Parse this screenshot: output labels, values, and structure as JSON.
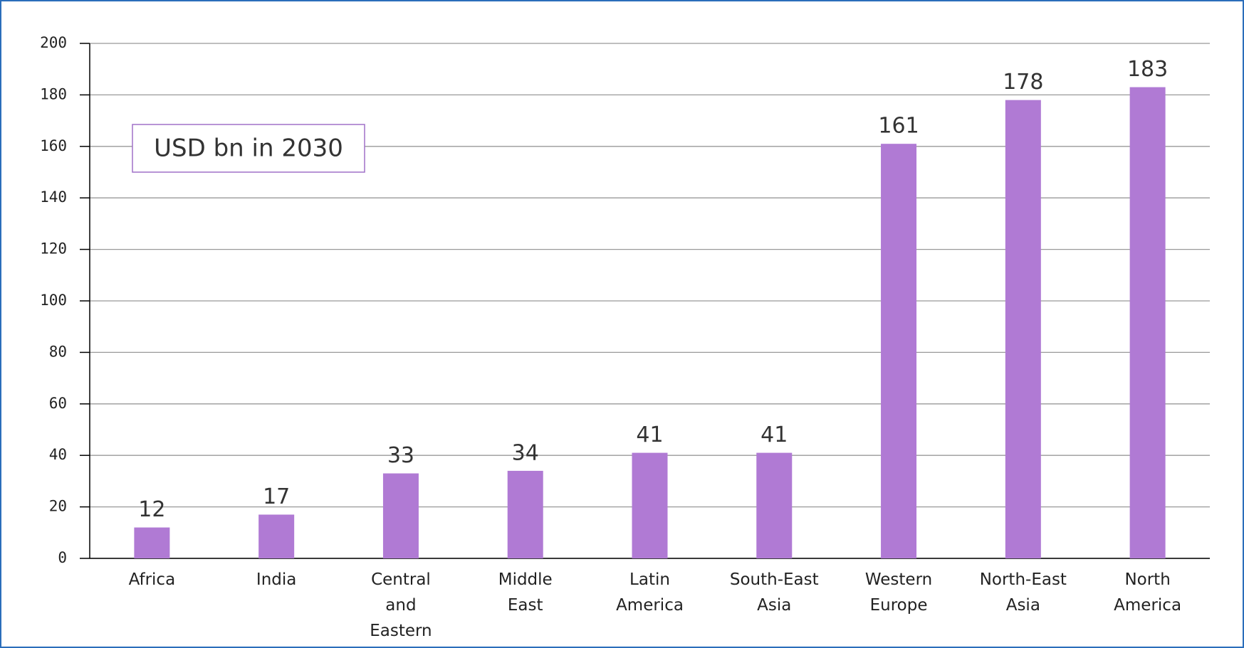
{
  "chart_data": {
    "type": "bar",
    "annotation": "USD bn in 2030",
    "categories": [
      "Africa",
      "India",
      "Central and Eastern Europe",
      "Middle East",
      "Latin America",
      "South-East Asia",
      "Western Europe",
      "North-East Asia",
      "North America"
    ],
    "values": [
      12,
      17,
      33,
      34,
      41,
      41,
      161,
      178,
      183
    ],
    "color": "#b07ad4",
    "ylim": [
      0,
      200
    ],
    "yticks": [
      0,
      20,
      40,
      60,
      80,
      100,
      120,
      140,
      160,
      180,
      200
    ],
    "grid": true
  }
}
